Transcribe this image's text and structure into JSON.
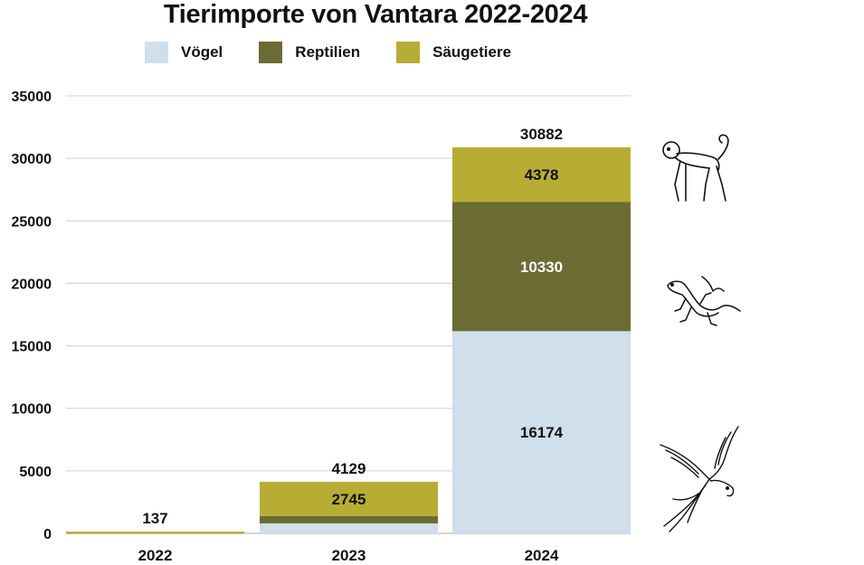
{
  "title": "Tierimporte von Vantara 2022-2024",
  "legend": [
    {
      "name": "Vögel",
      "color": "#cfdfeb"
    },
    {
      "name": "Reptilien",
      "color": "#6b6b33"
    },
    {
      "name": "Säugetiere",
      "color": "#b7ad34"
    }
  ],
  "chart_data": {
    "type": "bar",
    "stacked": true,
    "title": "Tierimporte von Vantara 2022-2024",
    "categories": [
      "2022",
      "2023",
      "2024"
    ],
    "series": [
      {
        "name": "Vögel",
        "color": "#cfdfeb",
        "values": [
          0,
          800,
          16174
        ],
        "labels": [
          "",
          "",
          "16174"
        ],
        "label_color": "#111111"
      },
      {
        "name": "Reptilien",
        "color": "#6b6b33",
        "values": [
          0,
          584,
          10330
        ],
        "labels": [
          "",
          "",
          "10330"
        ],
        "label_color": "#ffffff"
      },
      {
        "name": "Säugetiere",
        "color": "#b7ad34",
        "values": [
          137,
          2745,
          4378
        ],
        "labels": [
          "",
          "2745",
          "4378"
        ],
        "label_color": "#111111"
      }
    ],
    "totals": [
      "137",
      "4129",
      "30882"
    ],
    "ylim": [
      0,
      35000
    ],
    "yticks": [
      "0",
      "5000",
      "10000",
      "15000",
      "20000",
      "25000",
      "30000",
      "35000"
    ],
    "grid": true,
    "legend_position": "top"
  },
  "icons": [
    "monkey-icon",
    "lizard-icon",
    "parrot-icon"
  ]
}
